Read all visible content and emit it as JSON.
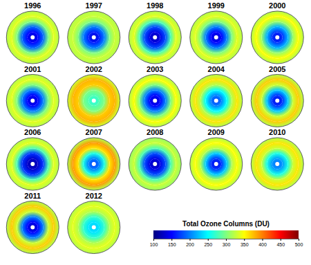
{
  "chart_data": {
    "type": "polar_map_grid",
    "lat": [
      -90,
      -80,
      -70,
      -60,
      -50,
      -40
    ],
    "panels": [
      {
        "title": "1996",
        "values": [
          130,
          150,
          190,
          300,
          340,
          320
        ]
      },
      {
        "title": "1997",
        "values": [
          130,
          160,
          200,
          300,
          330,
          320
        ]
      },
      {
        "title": "1998",
        "values": [
          120,
          140,
          180,
          280,
          340,
          320
        ]
      },
      {
        "title": "1999",
        "values": [
          130,
          150,
          200,
          300,
          340,
          320
        ]
      },
      {
        "title": "2000",
        "values": [
          140,
          170,
          220,
          310,
          350,
          320
        ]
      },
      {
        "title": "2001",
        "values": [
          130,
          150,
          200,
          300,
          340,
          320
        ]
      },
      {
        "title": "2002",
        "values": [
          260,
          280,
          300,
          370,
          380,
          330
        ]
      },
      {
        "title": "2003",
        "values": [
          130,
          150,
          200,
          300,
          350,
          320
        ]
      },
      {
        "title": "2004",
        "values": [
          170,
          200,
          250,
          320,
          360,
          320
        ]
      },
      {
        "title": "2005",
        "values": [
          140,
          170,
          230,
          330,
          370,
          320
        ]
      },
      {
        "title": "2006",
        "values": [
          115,
          130,
          170,
          280,
          340,
          320
        ]
      },
      {
        "title": "2007",
        "values": [
          170,
          200,
          260,
          360,
          390,
          320
        ]
      },
      {
        "title": "2008",
        "values": [
          120,
          140,
          180,
          280,
          330,
          310
        ]
      },
      {
        "title": "2009",
        "values": [
          140,
          170,
          230,
          320,
          350,
          320
        ]
      },
      {
        "title": "2010",
        "values": [
          190,
          210,
          260,
          330,
          360,
          320
        ]
      },
      {
        "title": "2011",
        "values": [
          120,
          150,
          200,
          330,
          370,
          320
        ]
      },
      {
        "title": "2012",
        "values": [
          230,
          240,
          270,
          320,
          340,
          320
        ]
      }
    ],
    "colorbar": {
      "label": "Total Ozone Columns (DU)",
      "range": [
        100,
        500
      ],
      "ticks": [
        100,
        150,
        200,
        250,
        300,
        350,
        400,
        450,
        500
      ]
    }
  }
}
